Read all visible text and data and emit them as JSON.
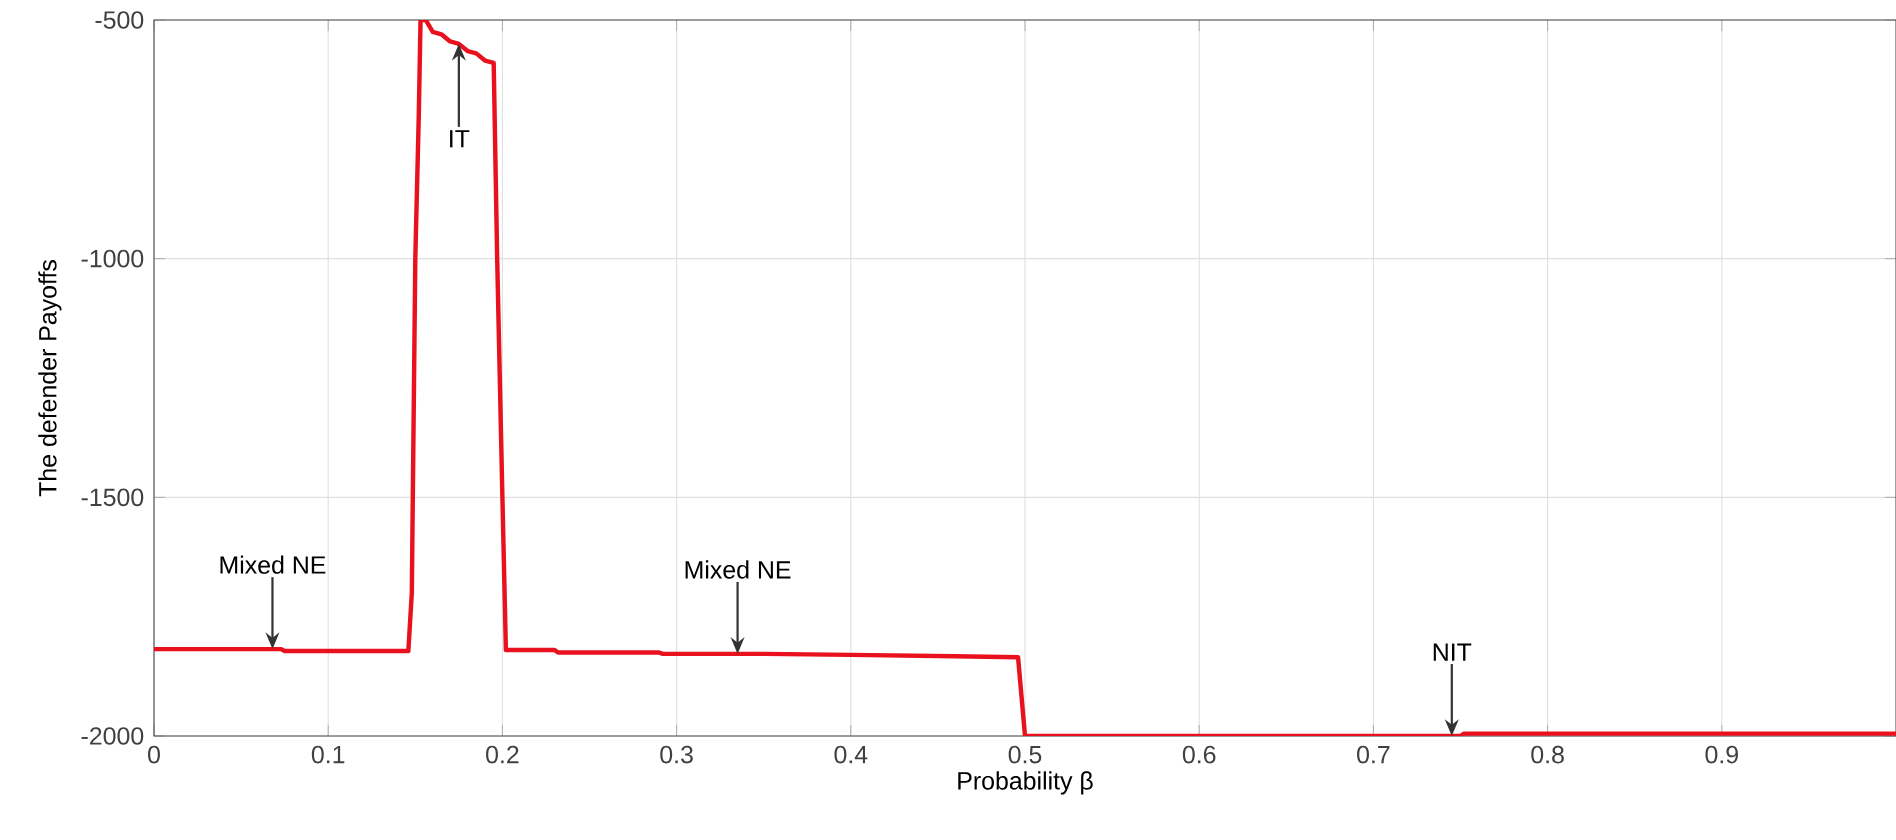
{
  "chart_data": {
    "type": "line",
    "xlabel": "Probability  β",
    "ylabel": "The defender Payoffs",
    "xlim": [
      0,
      1
    ],
    "ylim": [
      -2000,
      -500
    ],
    "xticks": [
      0,
      0.1,
      0.2,
      0.3,
      0.4,
      0.5,
      0.6,
      0.7,
      0.8,
      0.9
    ],
    "yticks": [
      -2000,
      -1500,
      -1000,
      -500
    ],
    "grid": true,
    "line_style": "solid",
    "series": [
      {
        "color": "#e8111d",
        "x": [
          0,
          0.073,
          0.075,
          0.146,
          0.148,
          0.15,
          0.152,
          0.153,
          0.156,
          0.16,
          0.165,
          0.17,
          0.175,
          0.18,
          0.185,
          0.19,
          0.195,
          0.197,
          0.2,
          0.202,
          0.23,
          0.232,
          0.29,
          0.292,
          0.35,
          0.4,
          0.46,
          0.496,
          0.5,
          0.75,
          0.752,
          1
        ],
        "values": [
          -1818,
          -1818,
          -1822,
          -1822,
          -1700,
          -1000,
          -700,
          -500,
          -500,
          -525,
          -530,
          -545,
          -550,
          -565,
          -570,
          -585,
          -590,
          -1000,
          -1500,
          -1820,
          -1820,
          -1825,
          -1825,
          -1828,
          -1828,
          -1830,
          -1833,
          -1835,
          -2000,
          -2000,
          -1995,
          -1995
        ]
      }
    ],
    "annotations": [
      {
        "text": "Mixed NE",
        "x": 0.068,
        "y": -1818
      },
      {
        "text": "IT",
        "x": 0.175,
        "y": -550
      },
      {
        "text": "Mixed NE",
        "x": 0.335,
        "y": -1828
      },
      {
        "text": "NIT",
        "x": 0.745,
        "y": -2000
      }
    ]
  }
}
